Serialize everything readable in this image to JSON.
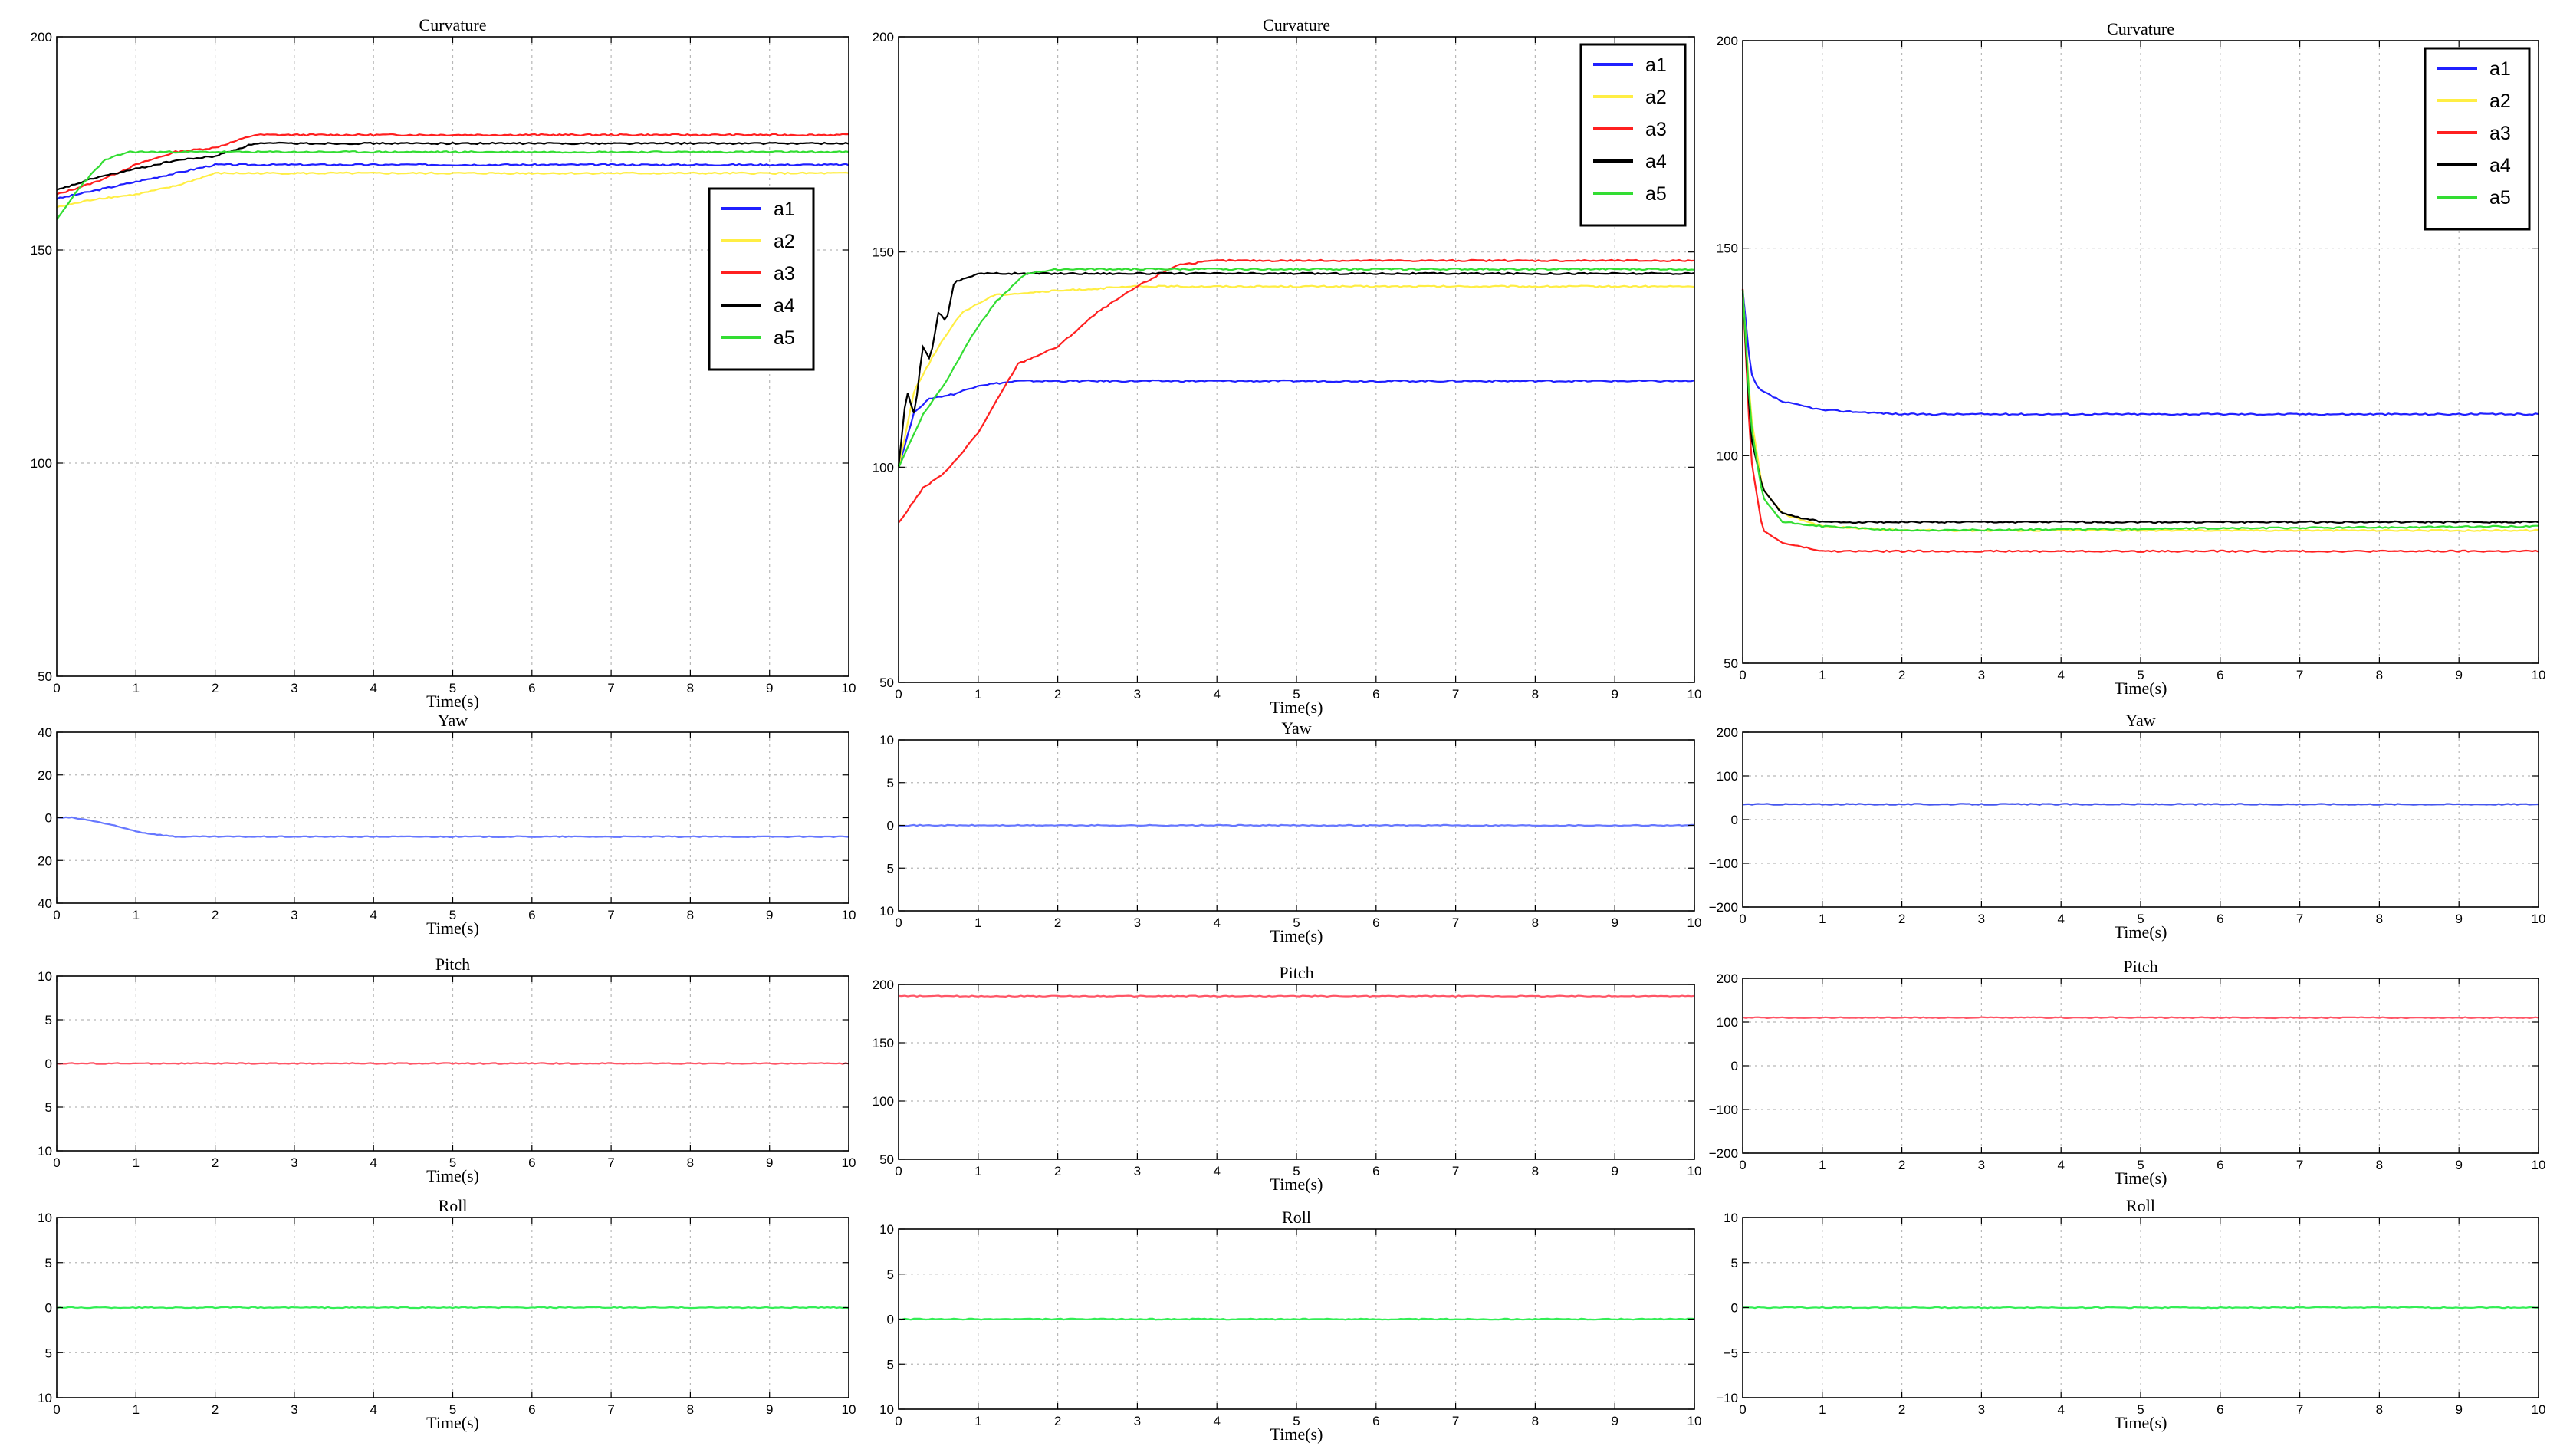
{
  "chart_data": [
    {
      "type": "line",
      "title": "Curvature",
      "xlabel": "Time(s)",
      "ylabel": "",
      "xlim": [
        0,
        10
      ],
      "ylim": [
        50,
        200
      ],
      "xticks": [
        "0",
        "1",
        "2",
        "3",
        "4",
        "5",
        "6",
        "7",
        "8",
        "9",
        "10"
      ],
      "yticks": [
        "50",
        "100",
        "150",
        "200"
      ],
      "grid": true,
      "legend": "right",
      "series": [
        {
          "name": "a1",
          "color": "#2020ff",
          "x": [
            0,
            0.5,
            1,
            1.5,
            2,
            2.5,
            3,
            10
          ],
          "y": [
            162,
            164,
            166,
            168,
            170,
            170,
            170,
            170
          ]
        },
        {
          "name": "a2",
          "color": "#ffee44",
          "x": [
            0,
            0.5,
            1,
            1.5,
            2,
            2.5,
            10
          ],
          "y": [
            160,
            162,
            163,
            165,
            168,
            168,
            168
          ]
        },
        {
          "name": "a3",
          "color": "#ff2020",
          "x": [
            0,
            0.5,
            1,
            1.5,
            2,
            2.5,
            3,
            10
          ],
          "y": [
            163,
            166,
            170,
            173,
            174,
            177,
            177,
            177
          ]
        },
        {
          "name": "a4",
          "color": "#000000",
          "x": [
            0,
            0.5,
            1,
            1.5,
            2,
            2.5,
            10
          ],
          "y": [
            164,
            167,
            169,
            171,
            172,
            175,
            175
          ]
        },
        {
          "name": "a5",
          "color": "#33dd33",
          "x": [
            0,
            0.3,
            0.6,
            0.9,
            1.2,
            2,
            10
          ],
          "y": [
            157,
            165,
            171,
            173,
            173,
            173,
            173
          ]
        }
      ]
    },
    {
      "type": "line",
      "title": "Curvature",
      "xlabel": "Time(s)",
      "ylabel": "",
      "xlim": [
        0,
        10
      ],
      "ylim": [
        50,
        200
      ],
      "xticks": [
        "0",
        "1",
        "2",
        "3",
        "4",
        "5",
        "6",
        "7",
        "8",
        "9",
        "10"
      ],
      "yticks": [
        "50",
        "100",
        "150",
        "200"
      ],
      "grid": true,
      "legend": "top-right",
      "series": [
        {
          "name": "a1",
          "color": "#2020ff",
          "x": [
            0,
            0.2,
            0.4,
            0.7,
            1,
            1.5,
            10
          ],
          "y": [
            100,
            113,
            116,
            117,
            119,
            120,
            120
          ]
        },
        {
          "name": "a2",
          "color": "#ffee44",
          "x": [
            0,
            0.2,
            0.5,
            0.8,
            1.2,
            2,
            3,
            10
          ],
          "y": [
            100,
            118,
            128,
            136,
            140,
            141,
            142,
            142
          ]
        },
        {
          "name": "a3",
          "color": "#ff2020",
          "x": [
            0,
            0.3,
            0.6,
            1,
            1.5,
            2,
            2.5,
            3,
            3.5,
            4,
            10
          ],
          "y": [
            87,
            95,
            99,
            108,
            124,
            128,
            136,
            142,
            147,
            148,
            148
          ]
        },
        {
          "name": "a4",
          "color": "#000000",
          "x": [
            0,
            0.1,
            0.2,
            0.3,
            0.4,
            0.5,
            0.6,
            0.7,
            1,
            1.5,
            10
          ],
          "y": [
            100,
            118,
            112,
            128,
            125,
            136,
            134,
            143,
            145,
            145,
            145
          ]
        },
        {
          "name": "a5",
          "color": "#33dd33",
          "x": [
            0,
            0.3,
            0.6,
            0.9,
            1.2,
            1.6,
            2,
            10
          ],
          "y": [
            100,
            112,
            120,
            130,
            138,
            145,
            146,
            146
          ]
        }
      ]
    },
    {
      "type": "line",
      "title": "Curvature",
      "xlabel": "Time(s)",
      "ylabel": "",
      "xlim": [
        0,
        10
      ],
      "ylim": [
        50,
        200
      ],
      "xticks": [
        "0",
        "1",
        "2",
        "3",
        "4",
        "5",
        "6",
        "7",
        "8",
        "9",
        "10"
      ],
      "yticks": [
        "50",
        "100",
        "150",
        "200"
      ],
      "grid": true,
      "legend": "top-right",
      "series": [
        {
          "name": "a1",
          "color": "#2020ff",
          "x": [
            0,
            0.1,
            0.2,
            0.5,
            1,
            2,
            4,
            10
          ],
          "y": [
            140,
            120,
            116,
            113,
            111,
            110,
            110,
            110
          ]
        },
        {
          "name": "a2",
          "color": "#ffee44",
          "x": [
            0,
            0.1,
            0.25,
            0.5,
            1,
            2,
            10
          ],
          "y": [
            140,
            110,
            92,
            86,
            83,
            82,
            82
          ]
        },
        {
          "name": "a3",
          "color": "#ff2020",
          "x": [
            0,
            0.1,
            0.25,
            0.5,
            1,
            2,
            10
          ],
          "y": [
            140,
            100,
            82,
            79,
            77,
            77,
            77
          ]
        },
        {
          "name": "a4",
          "color": "#000000",
          "x": [
            0,
            0.1,
            0.25,
            0.5,
            1,
            2,
            10
          ],
          "y": [
            140,
            105,
            92,
            86,
            84,
            84,
            84
          ]
        },
        {
          "name": "a5",
          "color": "#33dd33",
          "x": [
            0,
            0.1,
            0.25,
            0.5,
            1,
            2,
            10
          ],
          "y": [
            140,
            108,
            90,
            84,
            83,
            82,
            83
          ]
        }
      ]
    },
    {
      "type": "line",
      "title": "Yaw",
      "xlabel": "Time(s)",
      "ylabel": "",
      "xlim": [
        0,
        10
      ],
      "ylim": [
        -45,
        45
      ],
      "xticks": [
        "0",
        "1",
        "2",
        "3",
        "4",
        "5",
        "6",
        "7",
        "8",
        "9",
        "10"
      ],
      "yticks": [
        "40",
        "20",
        "0",
        "20",
        "40"
      ],
      "grid": true,
      "series": [
        {
          "name": "",
          "color": "#6677ff",
          "x": [
            0,
            0.2,
            0.5,
            0.8,
            1.1,
            1.5,
            2,
            10
          ],
          "y": [
            0,
            0,
            -2,
            -5,
            -8,
            -10,
            -10,
            -10
          ]
        }
      ]
    },
    {
      "type": "line",
      "title": "Yaw",
      "xlabel": "Time(s)",
      "ylabel": "",
      "xlim": [
        0,
        10
      ],
      "ylim": [
        -10,
        10
      ],
      "xticks": [
        "0",
        "1",
        "2",
        "3",
        "4",
        "5",
        "6",
        "7",
        "8",
        "9",
        "10"
      ],
      "yticks": [
        "10",
        "5",
        "0",
        "5",
        "10"
      ],
      "grid": true,
      "series": [
        {
          "name": "",
          "color": "#6677ff",
          "x": [
            0,
            10
          ],
          "y": [
            0,
            0
          ]
        }
      ]
    },
    {
      "type": "line",
      "title": "Yaw",
      "xlabel": "Time(s)",
      "ylabel": "",
      "xlim": [
        0,
        10
      ],
      "ylim": [
        -200,
        200
      ],
      "xticks": [
        "0",
        "1",
        "2",
        "3",
        "4",
        "5",
        "6",
        "7",
        "8",
        "9",
        "10"
      ],
      "yticks": [
        "−200",
        "−100",
        "0",
        "100",
        "200"
      ],
      "grid": true,
      "series": [
        {
          "name": "",
          "color": "#4455ee",
          "x": [
            0,
            10
          ],
          "y": [
            35,
            35
          ]
        }
      ]
    },
    {
      "type": "line",
      "title": "Pitch",
      "xlabel": "Time(s)",
      "ylabel": "",
      "xlim": [
        0,
        10
      ],
      "ylim": [
        -10,
        10
      ],
      "xticks": [
        "0",
        "1",
        "2",
        "3",
        "4",
        "5",
        "6",
        "7",
        "8",
        "9",
        "10"
      ],
      "yticks": [
        "10",
        "5",
        "0",
        "5",
        "10"
      ],
      "grid": true,
      "series": [
        {
          "name": "",
          "color": "#ff5566",
          "x": [
            0,
            10
          ],
          "y": [
            0,
            0
          ]
        }
      ]
    },
    {
      "type": "line",
      "title": "Pitch",
      "xlabel": "Time(s)",
      "ylabel": "",
      "xlim": [
        0,
        10
      ],
      "ylim": [
        50,
        200
      ],
      "xticks": [
        "0",
        "1",
        "2",
        "3",
        "4",
        "5",
        "6",
        "7",
        "8",
        "9",
        "10"
      ],
      "yticks": [
        "50",
        "100",
        "150",
        "200"
      ],
      "grid": true,
      "series": [
        {
          "name": "",
          "color": "#ff5566",
          "x": [
            0,
            10
          ],
          "y": [
            190,
            190
          ]
        }
      ]
    },
    {
      "type": "line",
      "title": "Pitch",
      "xlabel": "Time(s)",
      "ylabel": "",
      "xlim": [
        0,
        10
      ],
      "ylim": [
        -200,
        200
      ],
      "xticks": [
        "0",
        "1",
        "2",
        "3",
        "4",
        "5",
        "6",
        "7",
        "8",
        "9",
        "10"
      ],
      "yticks": [
        "−200",
        "−100",
        "0",
        "100",
        "200"
      ],
      "grid": true,
      "series": [
        {
          "name": "",
          "color": "#ff5566",
          "x": [
            0,
            10
          ],
          "y": [
            110,
            110
          ]
        }
      ]
    },
    {
      "type": "line",
      "title": "Roll",
      "xlabel": "Time(s)",
      "ylabel": "",
      "xlim": [
        0,
        10
      ],
      "ylim": [
        -10,
        10
      ],
      "xticks": [
        "0",
        "1",
        "2",
        "3",
        "4",
        "5",
        "6",
        "7",
        "8",
        "9",
        "10"
      ],
      "yticks": [
        "10",
        "5",
        "0",
        "5",
        "10"
      ],
      "grid": true,
      "series": [
        {
          "name": "",
          "color": "#33ee55",
          "x": [
            0,
            10
          ],
          "y": [
            0,
            0
          ]
        }
      ]
    },
    {
      "type": "line",
      "title": "Roll",
      "xlabel": "Time(s)",
      "ylabel": "",
      "xlim": [
        0,
        10
      ],
      "ylim": [
        -10,
        10
      ],
      "xticks": [
        "0",
        "1",
        "2",
        "3",
        "4",
        "5",
        "6",
        "7",
        "8",
        "9",
        "10"
      ],
      "yticks": [
        "10",
        "5",
        "0",
        "5",
        "10"
      ],
      "grid": true,
      "series": [
        {
          "name": "",
          "color": "#33ee55",
          "x": [
            0,
            10
          ],
          "y": [
            0,
            0
          ]
        }
      ]
    },
    {
      "type": "line",
      "title": "Roll",
      "xlabel": "Time(s)",
      "ylabel": "",
      "xlim": [
        0,
        10
      ],
      "ylim": [
        -10,
        10
      ],
      "xticks": [
        "0",
        "1",
        "2",
        "3",
        "4",
        "5",
        "6",
        "7",
        "8",
        "9",
        "10"
      ],
      "yticks": [
        "−10",
        "−5",
        "0",
        "5",
        "10"
      ],
      "grid": true,
      "series": [
        {
          "name": "",
          "color": "#33ee55",
          "x": [
            0,
            10
          ],
          "y": [
            0,
            0
          ]
        }
      ]
    }
  ]
}
